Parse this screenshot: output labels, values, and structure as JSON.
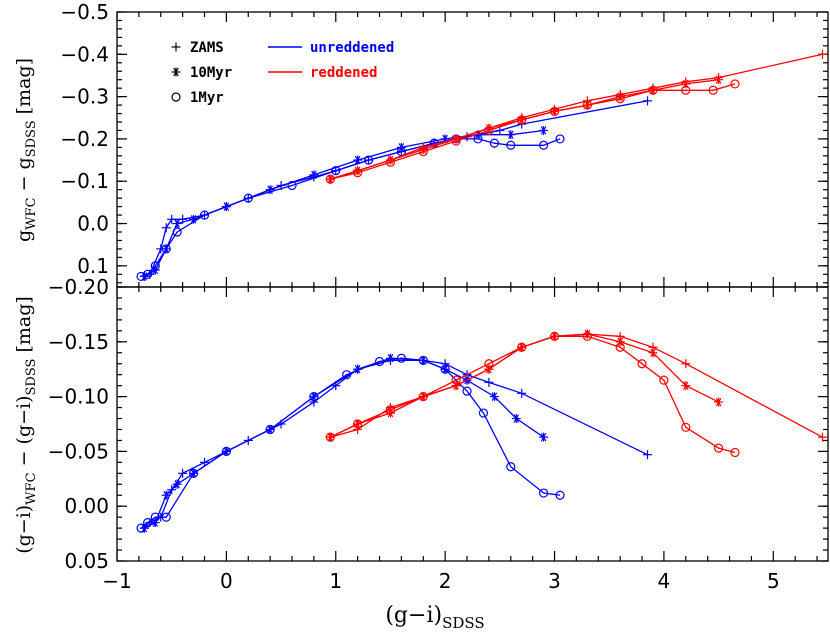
{
  "chart_data": [
    {
      "type": "line",
      "panel": "top",
      "ylabel": "g_WFC − g_SDSS [mag]",
      "ylim": [
        0.15,
        -0.5
      ],
      "xlim": [
        -1,
        5.5
      ],
      "yticks": [
        0.1,
        0.0,
        -0.1,
        -0.2,
        -0.3,
        -0.4,
        -0.5
      ],
      "ytick_labels": [
        "0.1",
        "0.0",
        "−0.1",
        "−0.2",
        "−0.3",
        "−0.4",
        "−0.5"
      ],
      "legend": {
        "markers": [
          {
            "symbol": "plus",
            "label": "ZAMS"
          },
          {
            "symbol": "star",
            "label": "10Myr"
          },
          {
            "symbol": "circle",
            "label": "1Myr"
          }
        ],
        "lines": [
          {
            "label": "unreddened",
            "color": "#0000ff"
          },
          {
            "label": "reddened",
            "color": "#ff0000"
          }
        ]
      },
      "series": [
        {
          "name": "unreddened",
          "model": "ZAMS",
          "marker": "plus",
          "color": "#0000ff",
          "x": [
            -0.75,
            -0.7,
            -0.6,
            -0.55,
            -0.5,
            -0.4,
            -0.2,
            0.0,
            0.2,
            0.5,
            0.8,
            1.0,
            1.3,
            1.6,
            1.9,
            2.2,
            2.5,
            2.7,
            3.85
          ],
          "y": [
            0.125,
            0.12,
            0.06,
            0.01,
            -0.01,
            -0.01,
            -0.02,
            -0.04,
            -0.06,
            -0.09,
            -0.11,
            -0.125,
            -0.15,
            -0.17,
            -0.19,
            -0.205,
            -0.22,
            -0.235,
            -0.29
          ]
        },
        {
          "name": "unreddened",
          "model": "10Myr",
          "marker": "star",
          "color": "#0000ff",
          "x": [
            -0.75,
            -0.65,
            -0.55,
            -0.45,
            -0.3,
            0.0,
            0.4,
            0.8,
            1.2,
            1.6,
            2.0,
            2.3,
            2.6,
            2.9
          ],
          "y": [
            0.125,
            0.11,
            0.06,
            0.0,
            -0.01,
            -0.04,
            -0.08,
            -0.115,
            -0.15,
            -0.18,
            -0.2,
            -0.21,
            -0.21,
            -0.22
          ]
        },
        {
          "name": "unreddened",
          "model": "1Myr",
          "marker": "circle",
          "color": "#0000ff",
          "x": [
            -0.78,
            -0.72,
            -0.65,
            -0.55,
            -0.45,
            -0.2,
            0.2,
            0.6,
            1.0,
            1.3,
            1.6,
            1.9,
            2.1,
            2.3,
            2.45,
            2.6,
            2.9,
            3.05
          ],
          "y": [
            0.125,
            0.12,
            0.1,
            0.06,
            0.02,
            -0.02,
            -0.06,
            -0.09,
            -0.125,
            -0.15,
            -0.17,
            -0.19,
            -0.2,
            -0.2,
            -0.19,
            -0.185,
            -0.185,
            -0.2
          ]
        },
        {
          "name": "reddened",
          "model": "ZAMS",
          "marker": "plus",
          "color": "#ff0000",
          "x": [
            0.95,
            1.2,
            1.5,
            1.8,
            2.1,
            2.4,
            2.7,
            3.0,
            3.3,
            3.6,
            3.9,
            4.2,
            4.5,
            5.45
          ],
          "y": [
            -0.105,
            -0.125,
            -0.15,
            -0.18,
            -0.2,
            -0.225,
            -0.25,
            -0.27,
            -0.29,
            -0.305,
            -0.32,
            -0.335,
            -0.345,
            -0.4
          ]
        },
        {
          "name": "reddened",
          "model": "10Myr",
          "marker": "star",
          "color": "#ff0000",
          "x": [
            0.95,
            1.2,
            1.5,
            1.8,
            2.1,
            2.4,
            2.7,
            3.0,
            3.3,
            3.6,
            3.9,
            4.2,
            4.5
          ],
          "y": [
            -0.105,
            -0.125,
            -0.15,
            -0.175,
            -0.2,
            -0.225,
            -0.245,
            -0.265,
            -0.28,
            -0.3,
            -0.315,
            -0.33,
            -0.34
          ]
        },
        {
          "name": "reddened",
          "model": "1Myr",
          "marker": "circle",
          "color": "#ff0000",
          "x": [
            0.95,
            1.2,
            1.5,
            1.8,
            2.1,
            2.4,
            2.7,
            3.0,
            3.3,
            3.6,
            3.9,
            4.2,
            4.45,
            4.65
          ],
          "y": [
            -0.105,
            -0.12,
            -0.145,
            -0.17,
            -0.195,
            -0.22,
            -0.245,
            -0.265,
            -0.28,
            -0.295,
            -0.315,
            -0.315,
            -0.315,
            -0.33
          ]
        }
      ]
    },
    {
      "type": "line",
      "panel": "bottom",
      "xlabel": "(g−i)_SDSS",
      "ylabel": "(g−i)_WFC − (g−i)_SDSS [mag]",
      "ylim": [
        0.05,
        -0.2
      ],
      "xlim": [
        -1,
        5.5
      ],
      "xticks": [
        -1,
        0,
        1,
        2,
        3,
        4,
        5
      ],
      "xtick_labels": [
        "−1",
        "0",
        "1",
        "2",
        "3",
        "4",
        "5"
      ],
      "yticks": [
        0.05,
        0.0,
        -0.05,
        -0.1,
        -0.15,
        -0.2
      ],
      "ytick_labels": [
        "0.05",
        "0.00",
        "−0.05",
        "−0.10",
        "−0.15",
        "−0.20"
      ],
      "series": [
        {
          "name": "unreddened",
          "model": "ZAMS",
          "marker": "plus",
          "color": "#0000ff",
          "x": [
            -0.75,
            -0.7,
            -0.6,
            -0.5,
            -0.4,
            -0.2,
            0.0,
            0.2,
            0.5,
            0.8,
            1.0,
            1.2,
            1.5,
            1.8,
            2.0,
            2.2,
            2.4,
            2.7,
            3.85
          ],
          "y": [
            0.02,
            0.015,
            0.01,
            -0.015,
            -0.03,
            -0.04,
            -0.05,
            -0.06,
            -0.075,
            -0.095,
            -0.11,
            -0.125,
            -0.133,
            -0.133,
            -0.13,
            -0.12,
            -0.113,
            -0.103,
            -0.047
          ]
        },
        {
          "name": "unreddened",
          "model": "10Myr",
          "marker": "star",
          "color": "#0000ff",
          "x": [
            -0.75,
            -0.65,
            -0.55,
            -0.45,
            -0.3,
            0.0,
            0.4,
            0.8,
            1.2,
            1.5,
            1.8,
            2.0,
            2.2,
            2.45,
            2.65,
            2.9
          ],
          "y": [
            0.02,
            0.015,
            -0.01,
            -0.02,
            -0.03,
            -0.05,
            -0.07,
            -0.1,
            -0.125,
            -0.135,
            -0.133,
            -0.125,
            -0.115,
            -0.1,
            -0.08,
            -0.063
          ]
        },
        {
          "name": "unreddened",
          "model": "1Myr",
          "marker": "circle",
          "color": "#0000ff",
          "x": [
            -0.78,
            -0.72,
            -0.65,
            -0.55,
            -0.3,
            0.0,
            0.4,
            0.8,
            1.1,
            1.4,
            1.6,
            1.8,
            2.0,
            2.2,
            2.35,
            2.6,
            2.9,
            3.05
          ],
          "y": [
            0.02,
            0.015,
            0.01,
            0.01,
            -0.03,
            -0.05,
            -0.07,
            -0.1,
            -0.12,
            -0.132,
            -0.135,
            -0.133,
            -0.125,
            -0.105,
            -0.085,
            -0.036,
            -0.012,
            -0.01
          ]
        },
        {
          "name": "reddened",
          "model": "ZAMS",
          "marker": "plus",
          "color": "#ff0000",
          "x": [
            0.95,
            1.2,
            1.5,
            1.8,
            2.1,
            2.4,
            2.7,
            3.0,
            3.3,
            3.6,
            3.9,
            4.2,
            5.45
          ],
          "y": [
            -0.063,
            -0.07,
            -0.09,
            -0.1,
            -0.11,
            -0.125,
            -0.145,
            -0.155,
            -0.157,
            -0.155,
            -0.145,
            -0.13,
            -0.063
          ]
        },
        {
          "name": "reddened",
          "model": "10Myr",
          "marker": "star",
          "color": "#ff0000",
          "x": [
            0.95,
            1.2,
            1.5,
            1.8,
            2.1,
            2.4,
            2.7,
            3.0,
            3.3,
            3.6,
            3.9,
            4.2,
            4.5
          ],
          "y": [
            -0.063,
            -0.075,
            -0.085,
            -0.1,
            -0.11,
            -0.125,
            -0.145,
            -0.155,
            -0.157,
            -0.15,
            -0.14,
            -0.11,
            -0.095
          ]
        },
        {
          "name": "reddened",
          "model": "1Myr",
          "marker": "circle",
          "color": "#ff0000",
          "x": [
            0.95,
            1.2,
            1.5,
            1.8,
            2.1,
            2.4,
            2.7,
            3.0,
            3.3,
            3.6,
            3.8,
            4.0,
            4.2,
            4.5,
            4.65
          ],
          "y": [
            -0.063,
            -0.075,
            -0.088,
            -0.1,
            -0.115,
            -0.13,
            -0.145,
            -0.155,
            -0.155,
            -0.145,
            -0.13,
            -0.115,
            -0.072,
            -0.053,
            -0.049
          ]
        }
      ]
    }
  ]
}
